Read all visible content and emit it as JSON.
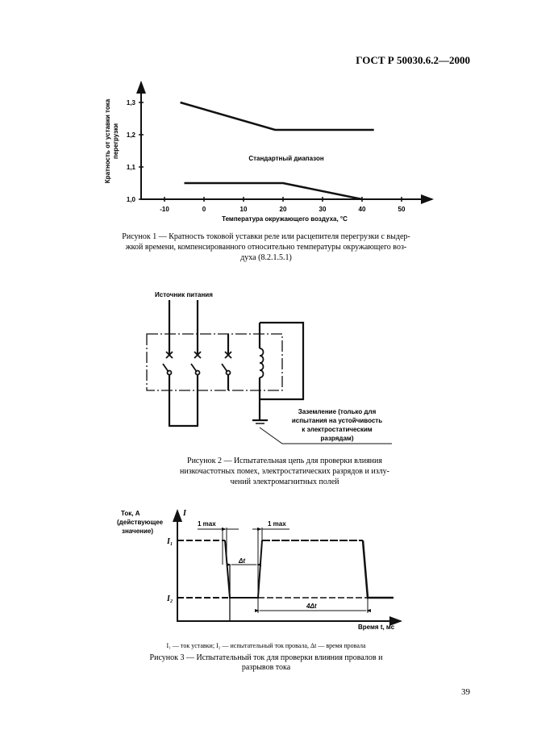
{
  "header": {
    "standard": "ГОСТ Р 50030.6.2—2000"
  },
  "figure1": {
    "y_axis_label_line1": "Кратность от уставки тока",
    "y_axis_label_line2": "перегрузки",
    "x_axis_label": "Температура окружающего воздуха, °С",
    "region_label": "Стандартный диапазон",
    "caption": [
      "Рисунок 1 — Кратность токовой уставки реле или расцепителя перегрузки с выдер-",
      "жкой времени, компенсированного относительно температуры окружающего воз-",
      "духа (8.2.1.5.1)"
    ],
    "chart_data": {
      "type": "line",
      "x_ticks": [
        "-10",
        "0",
        "10",
        "20",
        "30",
        "40",
        "50"
      ],
      "y_ticks": [
        "1,0",
        "1,1",
        "1,2",
        "1,3"
      ],
      "xlim": [
        -15,
        60
      ],
      "ylim": [
        1.0,
        1.35
      ],
      "series": [
        {
          "points": [
            [
              -6,
              1.3
            ],
            [
              18,
              1.215
            ],
            [
              43,
              1.215
            ]
          ]
        },
        {
          "points": [
            [
              -5,
              1.05
            ],
            [
              20,
              1.05
            ],
            [
              40,
              1.0
            ]
          ]
        }
      ]
    }
  },
  "figure2": {
    "source_label": "Источник питания",
    "ground_label": [
      "Заземление (только для",
      "испытания на устойчивость",
      "к электростатическим",
      "разрядам)"
    ],
    "caption": [
      "Рисунок 2 — Испытательная цепь для проверки влияния",
      "низкочастотных помех, электростатических разрядов и излу-",
      "чений электромагнитных полей"
    ]
  },
  "figure3": {
    "y_label": [
      "Ток, А",
      "(действующее",
      "значение)"
    ],
    "y_symbol": "I",
    "i1": "I₁",
    "i2": "I₂",
    "max_left": "1 max",
    "max_right": "1 max",
    "dt": "Δt",
    "four_dt": "4Δt",
    "x_label": "Время t, мс",
    "note": "I₁ — ток уставки; I₂ — испытательный ток провала, Δt — время провала",
    "caption": [
      "Рисунок 3 — Испытательный ток  для проверки влияния провалов и",
      "разрывов тока"
    ]
  },
  "page_number": "39"
}
